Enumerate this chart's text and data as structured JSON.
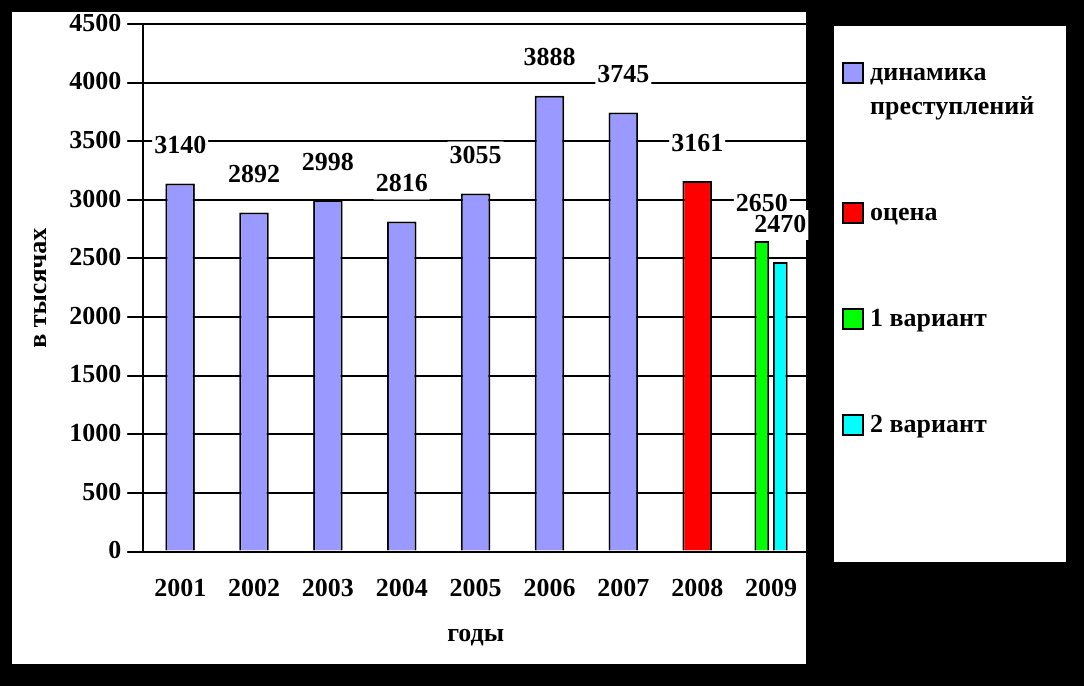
{
  "chart_data": {
    "type": "bar",
    "xlabel": "годы",
    "ylabel": "в тысячах",
    "categories": [
      "2001",
      "2002",
      "2003",
      "2004",
      "2005",
      "2006",
      "2007",
      "2008",
      "2009"
    ],
    "series": [
      {
        "name": "динамика преступлений",
        "color": "#9999ff",
        "values": [
          3140,
          2892,
          2998,
          2816,
          3055,
          3888,
          3745,
          null,
          null
        ]
      },
      {
        "name": "оцена",
        "color": "#ff0000",
        "values": [
          null,
          null,
          null,
          null,
          null,
          null,
          null,
          3161,
          null
        ]
      },
      {
        "name": "1 вариант",
        "color": "#00ff00",
        "values": [
          null,
          null,
          null,
          null,
          null,
          null,
          null,
          null,
          2650
        ]
      },
      {
        "name": "2 вариант",
        "color": "#00ffff",
        "values": [
          null,
          null,
          null,
          null,
          null,
          null,
          null,
          null,
          2470
        ]
      }
    ],
    "ylim": [
      0,
      4500
    ],
    "yticks": [
      0,
      500,
      1000,
      1500,
      2000,
      2500,
      3000,
      3500,
      4000,
      4500
    ],
    "grid": "y",
    "legend": "right",
    "data_labels": true
  }
}
